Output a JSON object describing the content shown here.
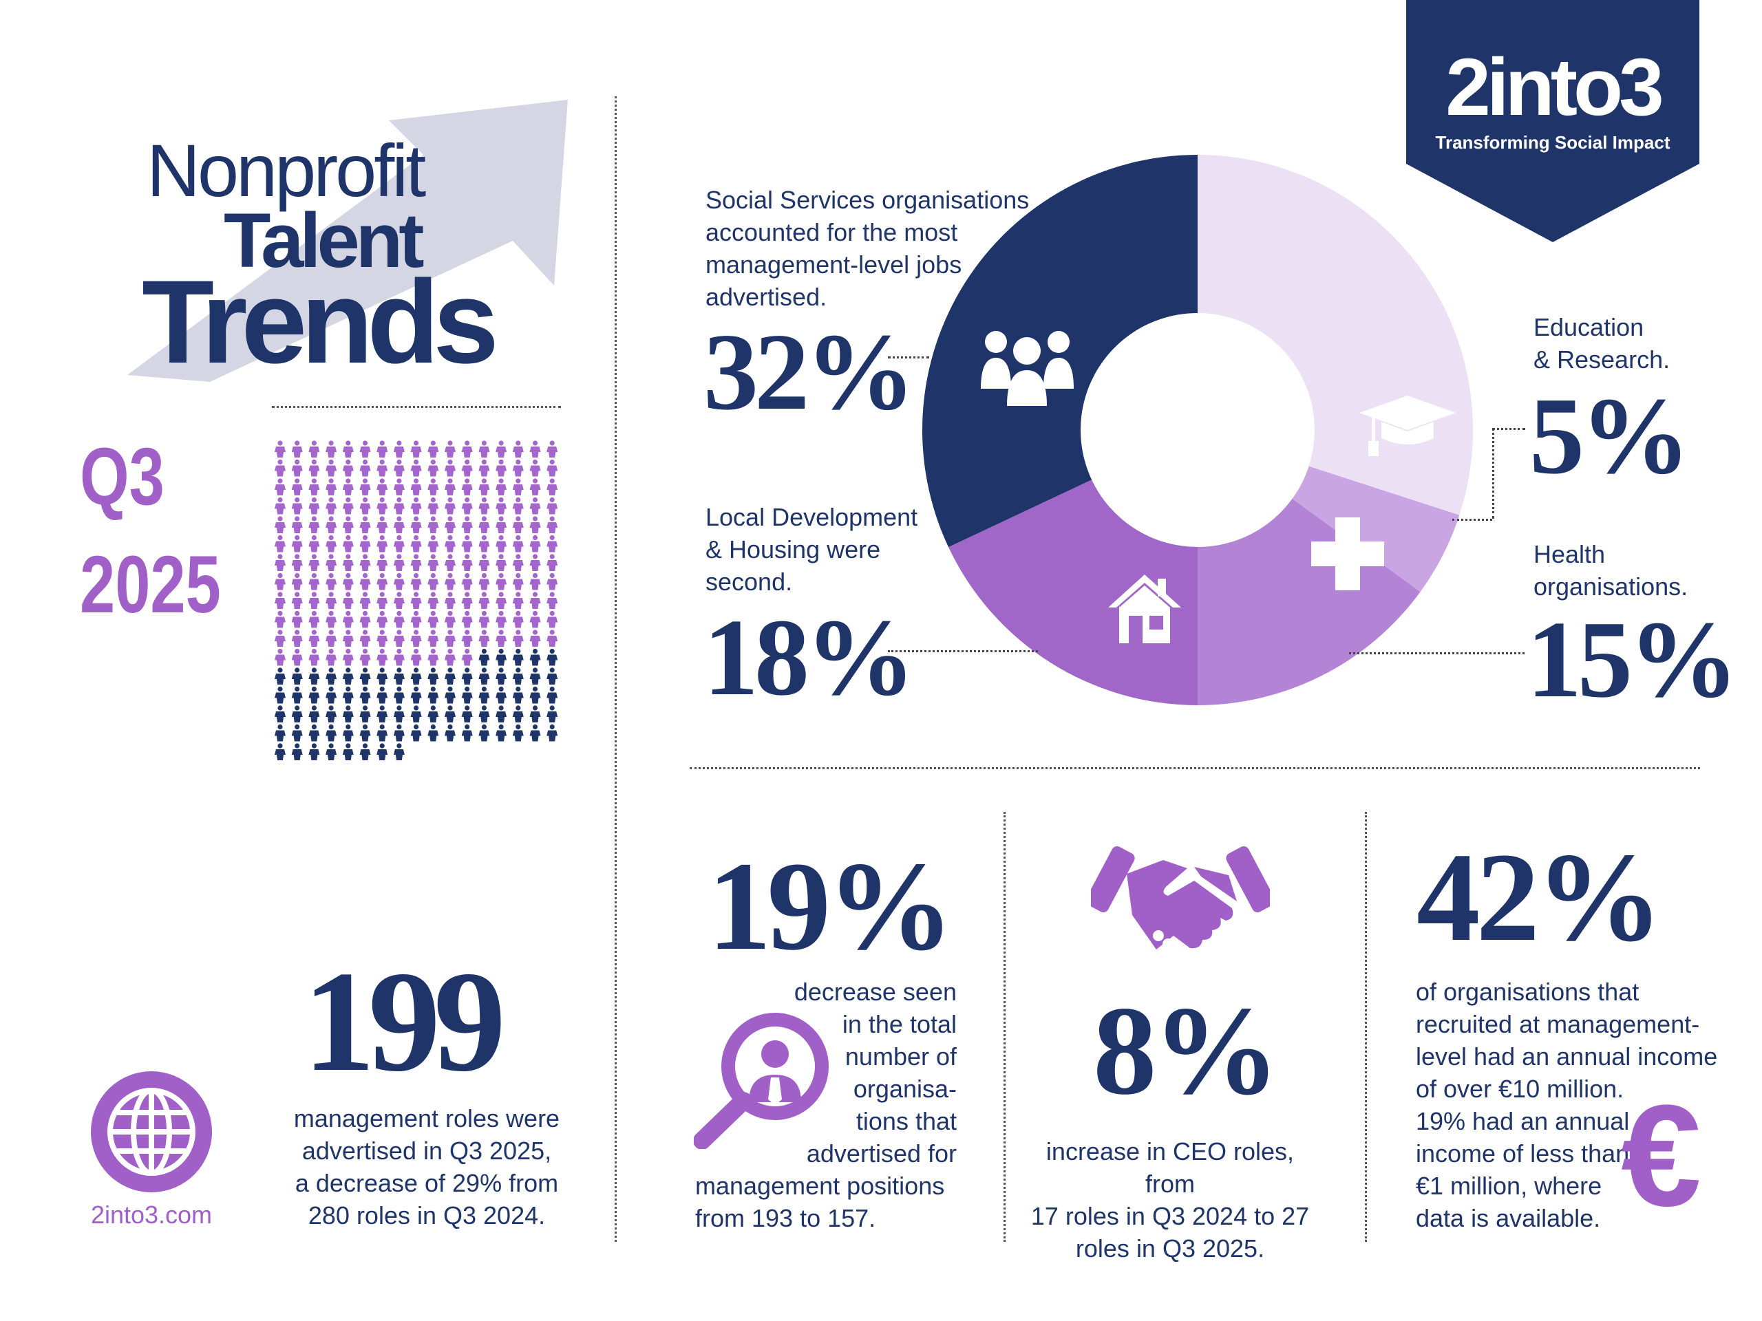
{
  "logo": {
    "brand": "2into3",
    "tagline": "Transforming Social Impact"
  },
  "title": {
    "line1": "Nonprofit",
    "line2": "Talent",
    "line3": "Trends"
  },
  "period": {
    "quarter": "Q3",
    "year": "2025"
  },
  "pictogram": {
    "total_icons": 280,
    "highlighted_icons": 199,
    "per_row": 17
  },
  "roles": {
    "number": "199",
    "text": [
      "management roles were",
      "advertised in Q3 2025,",
      "a decrease of 29% from",
      "280 roles in Q3 2024."
    ]
  },
  "website": "2into3.com",
  "chart_data": {
    "type": "pie",
    "style": "donut",
    "slices": [
      {
        "value": 32,
        "pct_label": "32%",
        "color": "#1f3468",
        "icon": "people-icon"
      },
      {
        "value": 18,
        "pct_label": "18%",
        "color": "#a066c8",
        "icon": "house-icon"
      },
      {
        "value": 15,
        "pct_label": "15%",
        "color": "#b383d6",
        "icon": "plus-icon"
      },
      {
        "value": 5,
        "pct_label": "5%",
        "color": "#c9a6e3",
        "icon": "graduation-cap-icon"
      },
      {
        "value": 30,
        "pct_label": "",
        "color": "#ece0f4",
        "icon": ""
      }
    ],
    "annotations": [
      {
        "pct": "32%",
        "text": [
          "Social Services organisations",
          "accounted for the most",
          "management-level jobs",
          "advertised."
        ]
      },
      {
        "pct": "18%",
        "text": [
          "Local Development",
          "& Housing were",
          "second."
        ]
      },
      {
        "pct": "5%",
        "text": [
          "Education",
          "& Research."
        ]
      },
      {
        "pct": "15%",
        "text": [
          "Health",
          "organisations."
        ]
      }
    ]
  },
  "stat_decrease": {
    "pct": "19%",
    "text_right": [
      "decrease seen",
      "in the total",
      "number of",
      "organisa-",
      "tions that",
      "advertised for"
    ],
    "text_bottom": [
      "management positions",
      "from 193 to 157."
    ]
  },
  "stat_ceo": {
    "pct": "8%",
    "text": [
      "increase in CEO roles, from",
      "17 roles in Q3 2024 to 27",
      "roles in Q3 2025."
    ]
  },
  "stat_income": {
    "pct": "42%",
    "text": [
      "of organisations that",
      "recruited at management-",
      "level had an annual income",
      "of over €10 million.",
      "19% had an annual",
      "income of less than",
      "€1 million, where",
      "data is available."
    ],
    "symbol": "€"
  },
  "colors": {
    "navy": "#1f3468",
    "purple": "#a060c8",
    "light_purple": "#ece0f4",
    "arrow_grey": "#d4d6e3"
  }
}
